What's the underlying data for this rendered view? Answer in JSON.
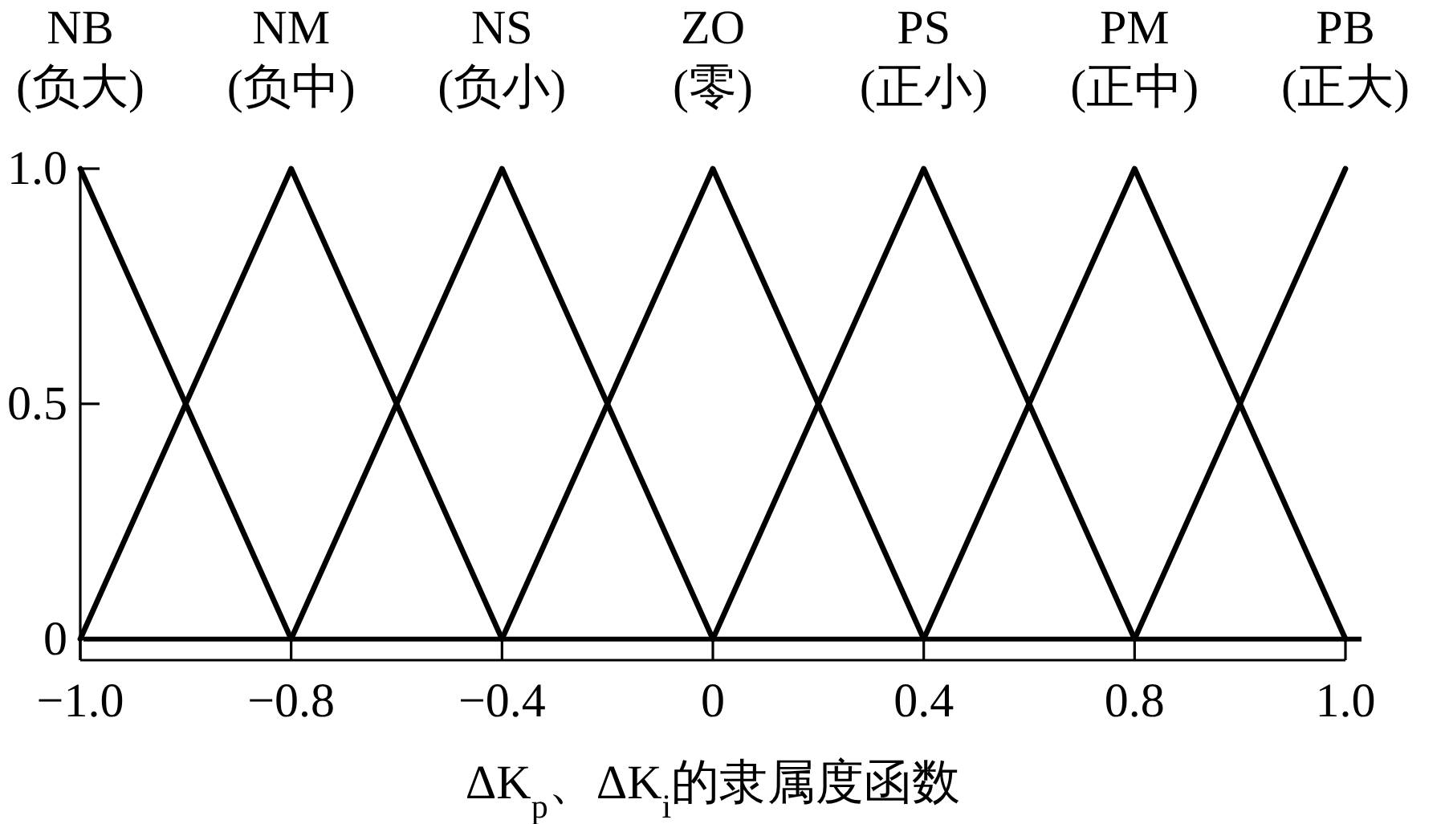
{
  "chart_data": {
    "type": "line",
    "xlabel": "ΔK$_{p}$、ΔK$_{i}$的隶属度函数",
    "categories": [
      "−1.0",
      "−0.8",
      "−0.4",
      "0",
      "0.4",
      "0.8",
      "1.0"
    ],
    "series": [
      {
        "name": "NB (负大)",
        "color": "#000000",
        "values": [
          1,
          0,
          null,
          null,
          null,
          null,
          null
        ]
      },
      {
        "name": "NM (负中)",
        "color": "#000000",
        "values": [
          0,
          1,
          0,
          null,
          null,
          null,
          null
        ]
      },
      {
        "name": "NS (负小)",
        "color": "#000000",
        "values": [
          null,
          0,
          1,
          0,
          null,
          null,
          null
        ]
      },
      {
        "name": "ZO (零)",
        "color": "#000000",
        "values": [
          null,
          null,
          0,
          1,
          0,
          null,
          null
        ]
      },
      {
        "name": "PS (正小)",
        "color": "#000000",
        "values": [
          null,
          null,
          null,
          0,
          1,
          0,
          null
        ]
      },
      {
        "name": "PM (正中)",
        "color": "#000000",
        "values": [
          null,
          null,
          null,
          null,
          0,
          1,
          0
        ]
      },
      {
        "name": "PB (正大)",
        "color": "#000000",
        "values": [
          null,
          null,
          null,
          null,
          null,
          0,
          1
        ]
      }
    ],
    "ylim": [
      -0.045,
      1
    ],
    "yticks": [
      0,
      0.5,
      {
        "value": 1,
        "label": "1.0"
      }
    ],
    "ref_lines": [
      {
        "axis": "y",
        "value": 0,
        "color": "#000000"
      }
    ],
    "legend": false,
    "grid": false,
    "marker": "none",
    "line_style": "solid"
  }
}
